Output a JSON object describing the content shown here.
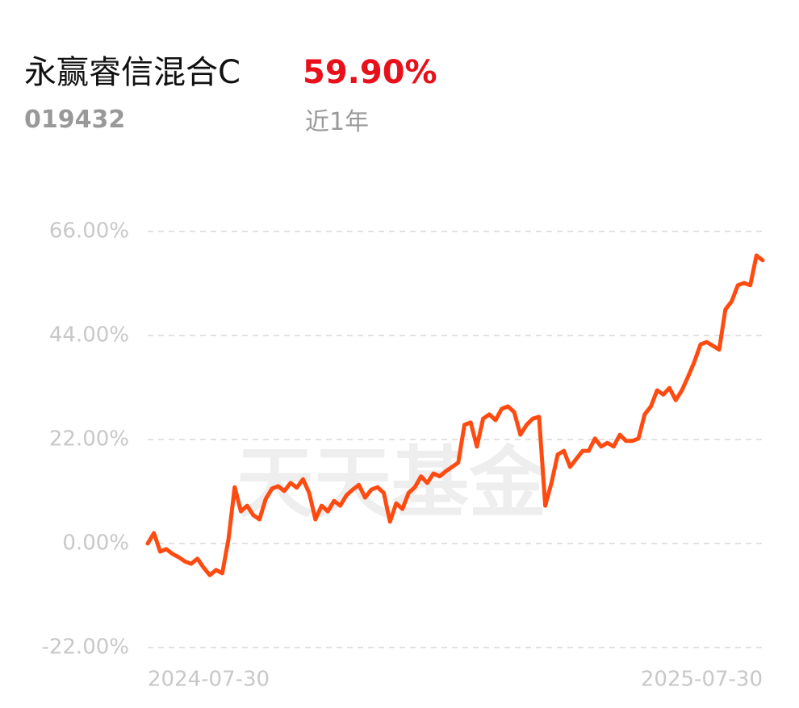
{
  "header": {
    "title": "永赢睿信混合C",
    "code": "019432",
    "return": "59.90%",
    "period": "近1年"
  },
  "chart_data": {
    "type": "line",
    "watermark": "天天基金",
    "color": "#ff4a10",
    "categories": [
      "2024-07-30",
      null,
      null,
      null,
      null,
      null,
      null,
      null,
      null,
      null,
      null,
      null,
      null,
      null,
      null,
      null,
      null,
      null,
      null,
      null,
      null,
      null,
      null,
      null,
      null,
      null,
      null,
      null,
      null,
      null,
      null,
      null,
      null,
      null,
      null,
      null,
      null,
      null,
      null,
      null,
      null,
      null,
      null,
      null,
      null,
      null,
      null,
      null,
      null,
      null,
      null,
      null,
      null,
      null,
      null,
      null,
      null,
      null,
      null,
      null,
      null,
      null,
      null,
      null,
      null,
      null,
      null,
      null,
      null,
      null,
      null,
      null,
      null,
      null,
      null,
      null,
      null,
      null,
      null,
      null,
      null,
      null,
      null,
      null,
      null,
      null,
      null,
      null,
      null,
      null,
      null,
      null,
      null,
      null,
      null,
      null,
      null,
      null,
      null,
      "2025-07-30"
    ],
    "values": [
      0,
      2.2,
      -1.7,
      -1.2,
      -2.2,
      -2.9,
      -3.8,
      -4.3,
      -3.2,
      -5.1,
      -6.7,
      -5.6,
      -6.3,
      0.9,
      11.9,
      6.8,
      8.0,
      6.0,
      5.1,
      9.4,
      11.6,
      12.1,
      11.1,
      12.8,
      11.8,
      13.6,
      10.7,
      5.1,
      8.0,
      6.8,
      9.0,
      8.0,
      10.2,
      11.4,
      12.4,
      9.7,
      11.4,
      11.9,
      10.7,
      4.6,
      8.5,
      7.3,
      10.7,
      11.9,
      14.2,
      12.8,
      14.8,
      14.2,
      15.3,
      16.2,
      17.1,
      25.1,
      25.6,
      20.5,
      26.4,
      27.3,
      26.1,
      28.5,
      29.0,
      27.8,
      23.0,
      25.1,
      26.4,
      26.8,
      8.0,
      12.8,
      18.8,
      19.6,
      16.2,
      17.9,
      19.6,
      19.6,
      22.2,
      20.5,
      21.3,
      20.5,
      23.0,
      21.7,
      21.7,
      22.2,
      27.3,
      29.0,
      32.4,
      31.5,
      32.9,
      30.3,
      32.4,
      35.3,
      38.4,
      42.1,
      42.6,
      41.8,
      41.0,
      49.5,
      51.2,
      54.6,
      55.1,
      54.6,
      60.9,
      59.9
    ],
    "ylim": [
      -22,
      66
    ],
    "yticks": [
      {
        "value": -22,
        "label": "-22.00%"
      },
      {
        "value": 0,
        "label": "0.00%"
      },
      {
        "value": 22,
        "label": "22.00%"
      },
      {
        "value": 44,
        "label": "44.00%"
      },
      {
        "value": 66,
        "label": "66.00%"
      }
    ],
    "grid": true
  }
}
